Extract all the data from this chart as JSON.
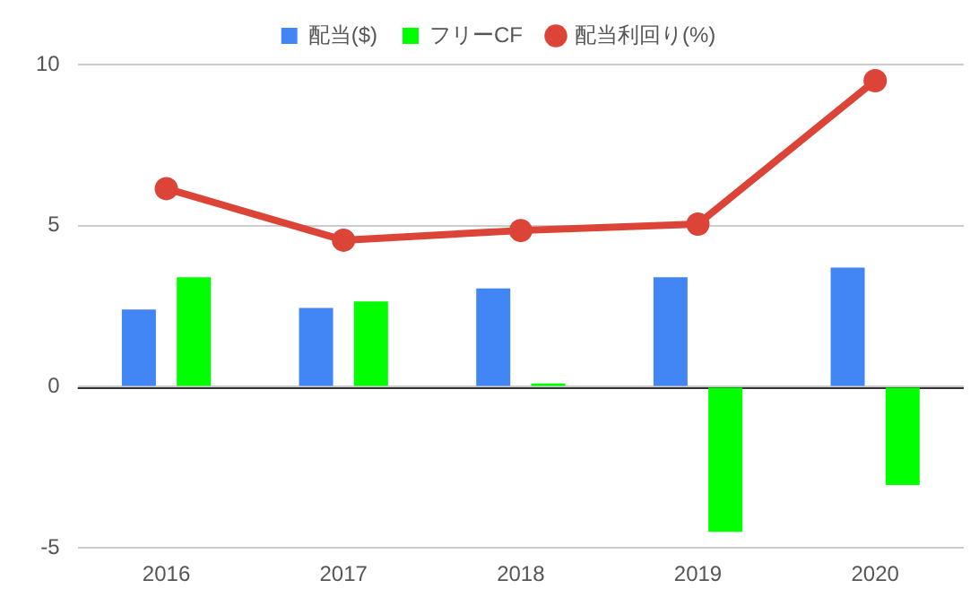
{
  "chart_data": {
    "type": "bar",
    "categories": [
      "2016",
      "2017",
      "2018",
      "2019",
      "2020"
    ],
    "series": [
      {
        "name": "配当($)",
        "color": "#4285f4",
        "values": [
          2.4,
          2.45,
          3.05,
          3.4,
          3.7
        ]
      },
      {
        "name": "フリーCF",
        "color": "#00ff00",
        "values": [
          3.4,
          2.65,
          0.1,
          -4.5,
          -3.05
        ]
      },
      {
        "name": "配当利回り(%)",
        "type": "line",
        "color": "#db4437",
        "values": [
          6.15,
          4.55,
          4.85,
          5.05,
          9.5
        ]
      }
    ],
    "ylim": [
      -5,
      10
    ],
    "yticks": [
      -5,
      0,
      5,
      10
    ],
    "grid": "y",
    "legend": "top",
    "marker": "circle"
  }
}
